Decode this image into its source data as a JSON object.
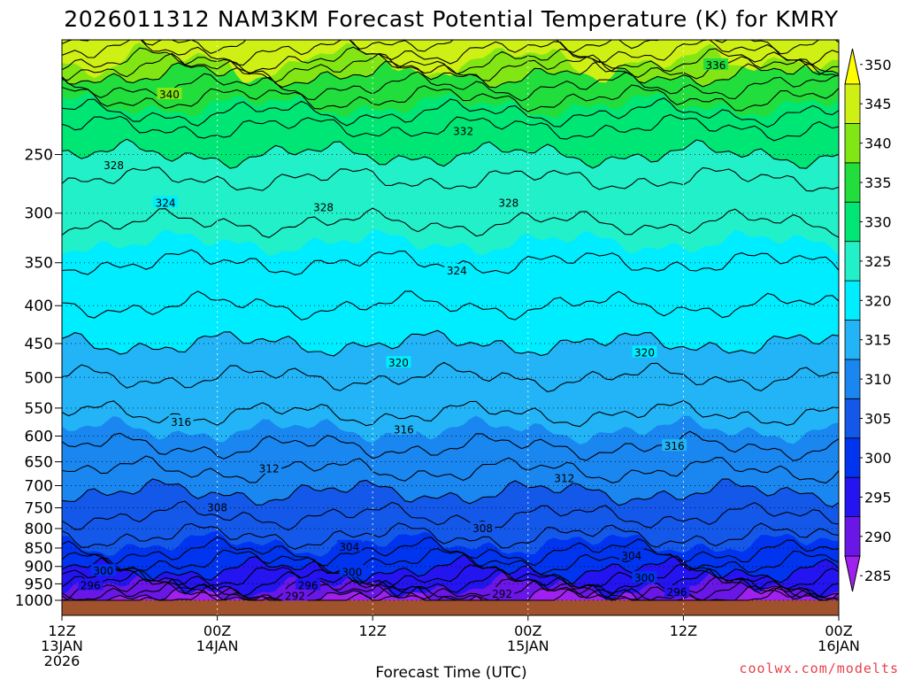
{
  "credit": "coolwx.com/modelts",
  "chart_data": {
    "type": "time-height contour (filled)",
    "title": "2026011312 NAM3KM Forecast Potential Temperature (K) for KMRY",
    "xlabel": "Forecast Time (UTC)",
    "ylabel": "",
    "units": "K",
    "y_axis": "pressure (hPa), log scale, top at ~175",
    "y_ticks": [
      250,
      300,
      350,
      400,
      450,
      500,
      550,
      600,
      650,
      700,
      750,
      800,
      850,
      900,
      950,
      1000
    ],
    "x_ticks": [
      {
        "hour": 0,
        "line1": "12Z",
        "line2": "13JAN",
        "line3": "2026"
      },
      {
        "hour": 12,
        "line1": "00Z",
        "line2": "14JAN",
        "line3": ""
      },
      {
        "hour": 24,
        "line1": "12Z",
        "line2": "",
        "line3": ""
      },
      {
        "hour": 36,
        "line1": "00Z",
        "line2": "15JAN",
        "line3": ""
      },
      {
        "hour": 48,
        "line1": "12Z",
        "line2": "",
        "line3": ""
      },
      {
        "hour": 60,
        "line1": "00Z",
        "line2": "16JAN",
        "line3": ""
      }
    ],
    "colorbar_levels": [
      285,
      290,
      295,
      300,
      305,
      310,
      315,
      320,
      325,
      330,
      335,
      340,
      345,
      350
    ],
    "colorbar_colors": [
      "#a020f0",
      "#6a16e6",
      "#2414f0",
      "#0034ee",
      "#1458ea",
      "#1a86f0",
      "#22b4f6",
      "#00ecff",
      "#22f0c8",
      "#00e675",
      "#22de3c",
      "#82e614",
      "#cff014",
      "#fffe00"
    ],
    "contour_interval_K": 2,
    "contour_labels": [
      {
        "text": "340",
        "hour": 8.3,
        "p": 207
      },
      {
        "text": "336",
        "hour": 50.5,
        "p": 189
      },
      {
        "text": "332",
        "hour": 31,
        "p": 232
      },
      {
        "text": "328",
        "hour": 4,
        "p": 258
      },
      {
        "text": "328",
        "hour": 20.2,
        "p": 294
      },
      {
        "text": "328",
        "hour": 34.5,
        "p": 290
      },
      {
        "text": "324",
        "hour": 8,
        "p": 290
      },
      {
        "text": "324",
        "hour": 30.5,
        "p": 358
      },
      {
        "text": "320",
        "hour": 26,
        "p": 477
      },
      {
        "text": "320",
        "hour": 45,
        "p": 462
      },
      {
        "text": "316",
        "hour": 9.2,
        "p": 573
      },
      {
        "text": "316",
        "hour": 26.4,
        "p": 587
      },
      {
        "text": "316",
        "hour": 47.3,
        "p": 618
      },
      {
        "text": "312",
        "hour": 16,
        "p": 663
      },
      {
        "text": "312",
        "hour": 38.8,
        "p": 683
      },
      {
        "text": "308",
        "hour": 12,
        "p": 748
      },
      {
        "text": "308",
        "hour": 32.5,
        "p": 798
      },
      {
        "text": "304",
        "hour": 22.2,
        "p": 845
      },
      {
        "text": "304",
        "hour": 44,
        "p": 869
      },
      {
        "text": "300",
        "hour": 3.2,
        "p": 911
      },
      {
        "text": "300",
        "hour": 22.4,
        "p": 914
      },
      {
        "text": "300",
        "hour": 45,
        "p": 931
      },
      {
        "text": "296",
        "hour": 2.2,
        "p": 953
      },
      {
        "text": "296",
        "hour": 19,
        "p": 953
      },
      {
        "text": "296",
        "hour": 47.5,
        "p": 973
      },
      {
        "text": "292",
        "hour": 18,
        "p": 985
      },
      {
        "text": "292",
        "hour": 34,
        "p": 978
      }
    ],
    "theta_profile_K": [
      {
        "p": 1005,
        "theta": 287
      },
      {
        "p": 990,
        "theta": 290
      },
      {
        "p": 975,
        "theta": 293
      },
      {
        "p": 950,
        "theta": 296
      },
      {
        "p": 920,
        "theta": 299
      },
      {
        "p": 900,
        "theta": 301
      },
      {
        "p": 860,
        "theta": 304
      },
      {
        "p": 800,
        "theta": 307
      },
      {
        "p": 740,
        "theta": 309
      },
      {
        "p": 680,
        "theta": 311.5
      },
      {
        "p": 620,
        "theta": 314
      },
      {
        "p": 560,
        "theta": 316
      },
      {
        "p": 500,
        "theta": 318
      },
      {
        "p": 450,
        "theta": 320
      },
      {
        "p": 400,
        "theta": 322
      },
      {
        "p": 350,
        "theta": 324
      },
      {
        "p": 300,
        "theta": 326.5
      },
      {
        "p": 270,
        "theta": 328
      },
      {
        "p": 250,
        "theta": 330
      },
      {
        "p": 230,
        "theta": 332
      },
      {
        "p": 210,
        "theta": 336
      },
      {
        "p": 195,
        "theta": 340
      },
      {
        "p": 185,
        "theta": 345
      },
      {
        "p": 175,
        "theta": 348
      }
    ],
    "ground_color": "#a0522d",
    "grid": "dotted gridlines at each pressure tick and each x tick"
  }
}
